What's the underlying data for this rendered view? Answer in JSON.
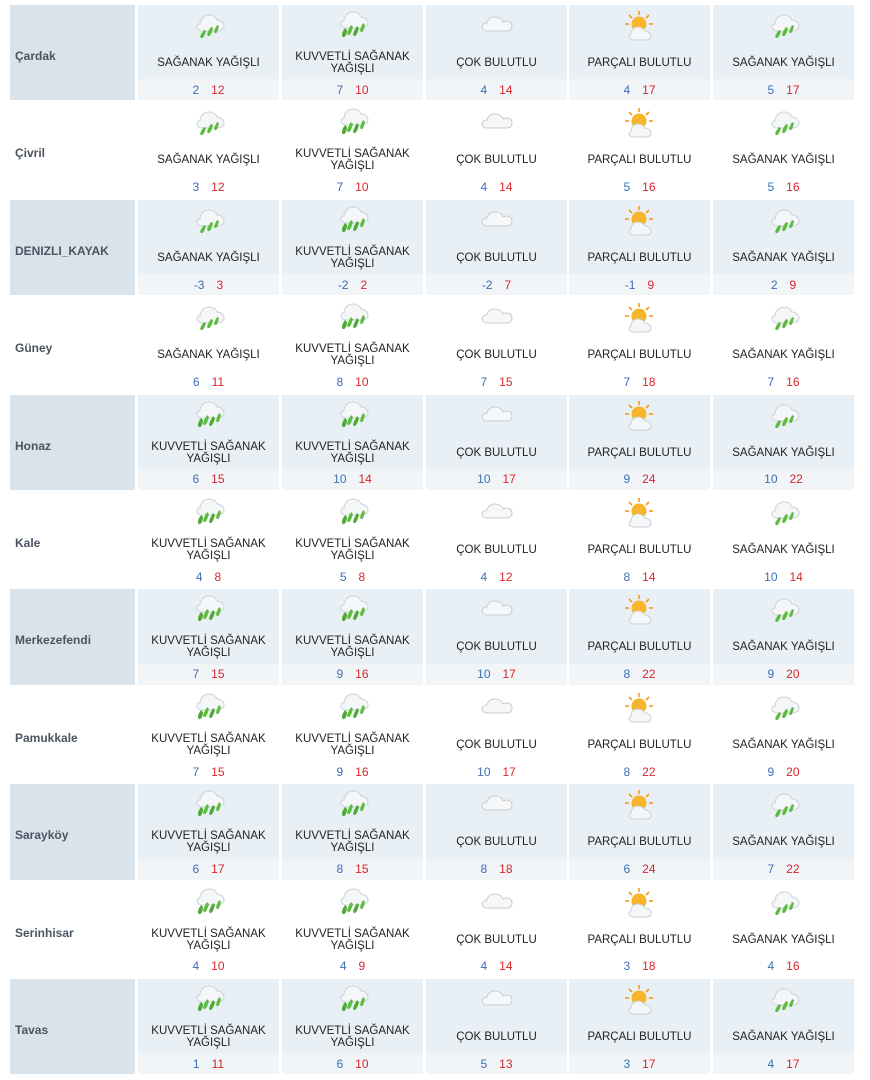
{
  "icons": {
    "SAĞANAK YAĞIŞLI": "rain-shower-icon",
    "KUVVETLİ SAĞANAK YAĞIŞLI": "heavy-rain-shower-icon",
    "ÇOK BULUTLU": "cloudy-icon",
    "PARÇALI BULUTLU": "partly-cloudy-icon"
  },
  "colors": {
    "low_temp": "#3a6fb5",
    "high_temp": "#d7262c",
    "row_alt": "#e9f0f5"
  },
  "rows": [
    {
      "name": "Çardak",
      "days": [
        {
          "cond": "SAĞANAK YAĞIŞLI",
          "icon": "rain",
          "lo": "2",
          "hi": "12"
        },
        {
          "cond": "KUVVETLİ SAĞANAK YAĞIŞLI",
          "icon": "heavy",
          "lo": "7",
          "hi": "10"
        },
        {
          "cond": "ÇOK BULUTLU",
          "icon": "cloud",
          "lo": "4",
          "hi": "14"
        },
        {
          "cond": "PARÇALI BULUTLU",
          "icon": "sun",
          "lo": "4",
          "hi": "17"
        },
        {
          "cond": "SAĞANAK YAĞIŞLI",
          "icon": "rain",
          "lo": "5",
          "hi": "17"
        }
      ]
    },
    {
      "name": "Çivril",
      "days": [
        {
          "cond": "SAĞANAK YAĞIŞLI",
          "icon": "rain",
          "lo": "3",
          "hi": "12"
        },
        {
          "cond": "KUVVETLİ SAĞANAK YAĞIŞLI",
          "icon": "heavy",
          "lo": "7",
          "hi": "10"
        },
        {
          "cond": "ÇOK BULUTLU",
          "icon": "cloud",
          "lo": "4",
          "hi": "14"
        },
        {
          "cond": "PARÇALI BULUTLU",
          "icon": "sun",
          "lo": "5",
          "hi": "16"
        },
        {
          "cond": "SAĞANAK YAĞIŞLI",
          "icon": "rain",
          "lo": "5",
          "hi": "16"
        }
      ]
    },
    {
      "name": "DENIZLI_KAYAK",
      "days": [
        {
          "cond": "SAĞANAK YAĞIŞLI",
          "icon": "rain",
          "lo": "-3",
          "hi": "3"
        },
        {
          "cond": "KUVVETLİ SAĞANAK YAĞIŞLI",
          "icon": "heavy",
          "lo": "-2",
          "hi": "2"
        },
        {
          "cond": "ÇOK BULUTLU",
          "icon": "cloud",
          "lo": "-2",
          "hi": "7"
        },
        {
          "cond": "PARÇALI BULUTLU",
          "icon": "sun",
          "lo": "-1",
          "hi": "9"
        },
        {
          "cond": "SAĞANAK YAĞIŞLI",
          "icon": "rain",
          "lo": "2",
          "hi": "9"
        }
      ]
    },
    {
      "name": "Güney",
      "days": [
        {
          "cond": "SAĞANAK YAĞIŞLI",
          "icon": "rain",
          "lo": "6",
          "hi": "11"
        },
        {
          "cond": "KUVVETLİ SAĞANAK YAĞIŞLI",
          "icon": "heavy",
          "lo": "8",
          "hi": "10"
        },
        {
          "cond": "ÇOK BULUTLU",
          "icon": "cloud",
          "lo": "7",
          "hi": "15"
        },
        {
          "cond": "PARÇALI BULUTLU",
          "icon": "sun",
          "lo": "7",
          "hi": "18"
        },
        {
          "cond": "SAĞANAK YAĞIŞLI",
          "icon": "rain",
          "lo": "7",
          "hi": "16"
        }
      ]
    },
    {
      "name": "Honaz",
      "days": [
        {
          "cond": "KUVVETLİ SAĞANAK YAĞIŞLI",
          "icon": "heavy",
          "lo": "6",
          "hi": "15"
        },
        {
          "cond": "KUVVETLİ SAĞANAK YAĞIŞLI",
          "icon": "heavy",
          "lo": "10",
          "hi": "14"
        },
        {
          "cond": "ÇOK BULUTLU",
          "icon": "cloud",
          "lo": "10",
          "hi": "17"
        },
        {
          "cond": "PARÇALI BULUTLU",
          "icon": "sun",
          "lo": "9",
          "hi": "24"
        },
        {
          "cond": "SAĞANAK YAĞIŞLI",
          "icon": "rain",
          "lo": "10",
          "hi": "22"
        }
      ]
    },
    {
      "name": "Kale",
      "days": [
        {
          "cond": "KUVVETLİ SAĞANAK YAĞIŞLI",
          "icon": "heavy",
          "lo": "4",
          "hi": "8"
        },
        {
          "cond": "KUVVETLİ SAĞANAK YAĞIŞLI",
          "icon": "heavy",
          "lo": "5",
          "hi": "8"
        },
        {
          "cond": "ÇOK BULUTLU",
          "icon": "cloud",
          "lo": "4",
          "hi": "12"
        },
        {
          "cond": "PARÇALI BULUTLU",
          "icon": "sun",
          "lo": "8",
          "hi": "14"
        },
        {
          "cond": "SAĞANAK YAĞIŞLI",
          "icon": "rain",
          "lo": "10",
          "hi": "14"
        }
      ]
    },
    {
      "name": "Merkezefendi",
      "days": [
        {
          "cond": "KUVVETLİ SAĞANAK YAĞIŞLI",
          "icon": "heavy",
          "lo": "7",
          "hi": "15"
        },
        {
          "cond": "KUVVETLİ SAĞANAK YAĞIŞLI",
          "icon": "heavy",
          "lo": "9",
          "hi": "16"
        },
        {
          "cond": "ÇOK BULUTLU",
          "icon": "cloud",
          "lo": "10",
          "hi": "17"
        },
        {
          "cond": "PARÇALI BULUTLU",
          "icon": "sun",
          "lo": "8",
          "hi": "22"
        },
        {
          "cond": "SAĞANAK YAĞIŞLI",
          "icon": "rain",
          "lo": "9",
          "hi": "20"
        }
      ]
    },
    {
      "name": "Pamukkale",
      "days": [
        {
          "cond": "KUVVETLİ SAĞANAK YAĞIŞLI",
          "icon": "heavy",
          "lo": "7",
          "hi": "15"
        },
        {
          "cond": "KUVVETLİ SAĞANAK YAĞIŞLI",
          "icon": "heavy",
          "lo": "9",
          "hi": "16"
        },
        {
          "cond": "ÇOK BULUTLU",
          "icon": "cloud",
          "lo": "10",
          "hi": "17"
        },
        {
          "cond": "PARÇALI BULUTLU",
          "icon": "sun",
          "lo": "8",
          "hi": "22"
        },
        {
          "cond": "SAĞANAK YAĞIŞLI",
          "icon": "rain",
          "lo": "9",
          "hi": "20"
        }
      ]
    },
    {
      "name": "Sarayköy",
      "days": [
        {
          "cond": "KUVVETLİ SAĞANAK YAĞIŞLI",
          "icon": "heavy",
          "lo": "6",
          "hi": "17"
        },
        {
          "cond": "KUVVETLİ SAĞANAK YAĞIŞLI",
          "icon": "heavy",
          "lo": "8",
          "hi": "15"
        },
        {
          "cond": "ÇOK BULUTLU",
          "icon": "cloud",
          "lo": "8",
          "hi": "18"
        },
        {
          "cond": "PARÇALI BULUTLU",
          "icon": "sun",
          "lo": "6",
          "hi": "24"
        },
        {
          "cond": "SAĞANAK YAĞIŞLI",
          "icon": "rain",
          "lo": "7",
          "hi": "22"
        }
      ]
    },
    {
      "name": "Serinhisar",
      "days": [
        {
          "cond": "KUVVETLİ SAĞANAK YAĞIŞLI",
          "icon": "heavy",
          "lo": "4",
          "hi": "10"
        },
        {
          "cond": "KUVVETLİ SAĞANAK YAĞIŞLI",
          "icon": "heavy",
          "lo": "4",
          "hi": "9"
        },
        {
          "cond": "ÇOK BULUTLU",
          "icon": "cloud",
          "lo": "4",
          "hi": "14"
        },
        {
          "cond": "PARÇALI BULUTLU",
          "icon": "sun",
          "lo": "3",
          "hi": "18"
        },
        {
          "cond": "SAĞANAK YAĞIŞLI",
          "icon": "rain",
          "lo": "4",
          "hi": "16"
        }
      ]
    },
    {
      "name": "Tavas",
      "days": [
        {
          "cond": "KUVVETLİ SAĞANAK YAĞIŞLI",
          "icon": "heavy",
          "lo": "1",
          "hi": "11"
        },
        {
          "cond": "KUVVETLİ SAĞANAK YAĞIŞLI",
          "icon": "heavy",
          "lo": "6",
          "hi": "10"
        },
        {
          "cond": "ÇOK BULUTLU",
          "icon": "cloud",
          "lo": "5",
          "hi": "13"
        },
        {
          "cond": "PARÇALI BULUTLU",
          "icon": "sun",
          "lo": "3",
          "hi": "17"
        },
        {
          "cond": "SAĞANAK YAĞIŞLI",
          "icon": "rain",
          "lo": "4",
          "hi": "17"
        }
      ]
    }
  ]
}
